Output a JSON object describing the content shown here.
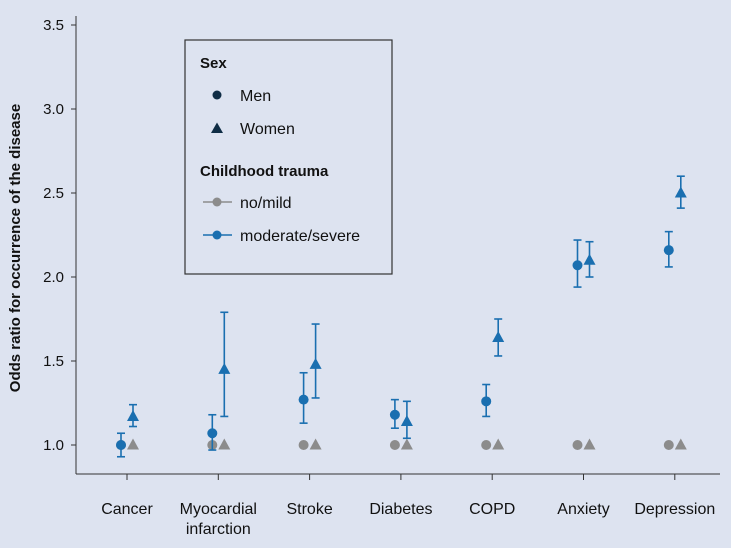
{
  "chart_data": {
    "type": "scatter",
    "ylabel": "Odds ratio for occurrence of the disease",
    "xlabel": "",
    "ylim": [
      0.9,
      3.6
    ],
    "yticks": [
      1.0,
      1.5,
      2.0,
      2.5,
      3.0,
      3.5
    ],
    "ytick_labels": [
      "1.0",
      "1.5",
      "2.0",
      "2.5",
      "3.0",
      "3.5"
    ],
    "categories": [
      [
        "Cancer"
      ],
      [
        "Myocardial",
        "infarction"
      ],
      [
        "Stroke"
      ],
      [
        "Diabetes"
      ],
      [
        "COPD"
      ],
      [
        "Anxiety"
      ],
      [
        "Depression"
      ]
    ],
    "colors": {
      "moderate_severe": "#1a6fb0",
      "no_mild": "#8c8c8c",
      "marker_dark": "#0f2d45",
      "background": "#dde3f0"
    },
    "series": [
      {
        "name": "Men, no/mild",
        "marker": "circle",
        "trauma": "no_mild",
        "values": [
          1.0,
          1.0,
          1.0,
          1.0,
          1.0,
          1.0,
          1.0
        ]
      },
      {
        "name": "Women, no/mild",
        "marker": "triangle",
        "trauma": "no_mild",
        "values": [
          1.0,
          1.0,
          1.0,
          1.0,
          1.0,
          1.0,
          1.0
        ]
      },
      {
        "name": "Men, moderate/severe",
        "marker": "circle",
        "trauma": "moderate_severe",
        "values": [
          1.0,
          1.07,
          1.27,
          1.18,
          1.26,
          2.07,
          2.16
        ],
        "lower": [
          0.93,
          0.97,
          1.13,
          1.1,
          1.17,
          1.94,
          2.06
        ],
        "upper": [
          1.07,
          1.18,
          1.43,
          1.27,
          1.36,
          2.22,
          2.27
        ]
      },
      {
        "name": "Women, moderate/severe",
        "marker": "triangle",
        "trauma": "moderate_severe",
        "values": [
          1.17,
          1.45,
          1.48,
          1.14,
          1.64,
          2.1,
          2.5
        ],
        "lower": [
          1.11,
          1.17,
          1.28,
          1.04,
          1.53,
          2.0,
          2.41
        ],
        "upper": [
          1.24,
          1.79,
          1.72,
          1.26,
          1.75,
          2.21,
          2.6
        ]
      }
    ],
    "legend": {
      "position": "top-left",
      "sex_title": "Sex",
      "men_label": "Men",
      "women_label": "Women",
      "trauma_title": "Childhood trauma",
      "no_mild_label": "no/mild",
      "mod_sev_label": "moderate/severe"
    }
  }
}
